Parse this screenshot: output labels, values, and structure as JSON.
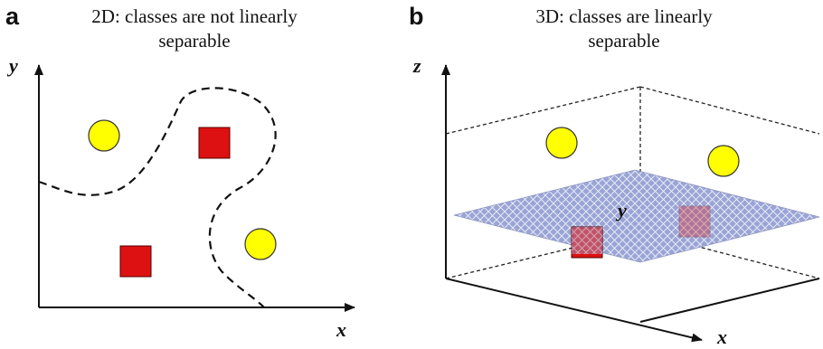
{
  "panel_a": {
    "letter": "a",
    "title_line1": "2D: classes are not linearly",
    "title_line2": "separable",
    "axis_x": "x",
    "axis_y": "y",
    "circle_color": "#ffff00",
    "square_color": "#dd1111"
  },
  "panel_b": {
    "letter": "b",
    "title_line1": "3D: classes are linearly",
    "title_line2": "separable",
    "axis_x": "x",
    "axis_y": "y",
    "axis_z": "z",
    "plane_color": "#9aa5d6",
    "circle_color": "#ffff00",
    "square_color": "#dd1111"
  }
}
